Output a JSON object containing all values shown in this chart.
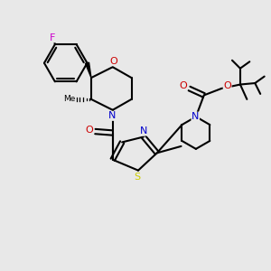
{
  "background_color": "#e8e8e8",
  "atom_colors": {
    "C": "#000000",
    "N": "#0000cc",
    "O": "#cc0000",
    "S": "#cccc00",
    "F": "#cc00cc"
  },
  "figsize": [
    3.0,
    3.0
  ],
  "dpi": 100,
  "xlim": [
    0,
    10
  ],
  "ylim": [
    0,
    10
  ]
}
